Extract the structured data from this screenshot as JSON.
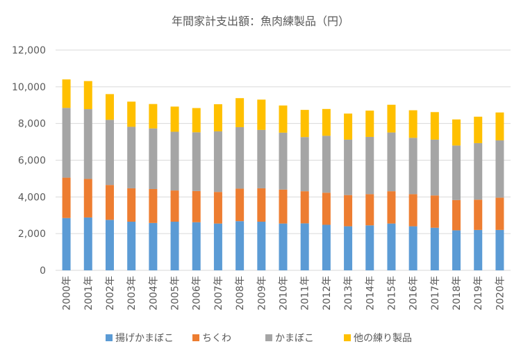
{
  "chart_data": {
    "type": "bar",
    "stacked": true,
    "title": "年間家計支出額：魚肉練製品（円）",
    "xlabel": "",
    "ylabel": "",
    "ylim": [
      0,
      12000
    ],
    "yticks": [
      "0",
      "2,000",
      "4,000",
      "6,000",
      "8,000",
      "10,000",
      "12,000"
    ],
    "grid": true,
    "legend_position": "bottom",
    "categories": [
      "2000年",
      "2001年",
      "2002年",
      "2003年",
      "2004年",
      "2005年",
      "2006年",
      "2007年",
      "2008年",
      "2009年",
      "2010年",
      "2011年",
      "2012年",
      "2013年",
      "2014年",
      "2015年",
      "2016年",
      "2017年",
      "2018年",
      "2019年",
      "2020年"
    ],
    "series": [
      {
        "name": "揚げかまぼこ",
        "color": "#5b9bd5",
        "values": [
          2850,
          2880,
          2750,
          2650,
          2580,
          2650,
          2620,
          2550,
          2680,
          2650,
          2550,
          2560,
          2480,
          2400,
          2450,
          2550,
          2400,
          2320,
          2180,
          2200,
          2200
        ]
      },
      {
        "name": "ちくわ",
        "color": "#ed7d31",
        "values": [
          2200,
          2100,
          1900,
          1820,
          1850,
          1700,
          1700,
          1720,
          1770,
          1820,
          1850,
          1750,
          1750,
          1700,
          1700,
          1760,
          1750,
          1760,
          1650,
          1650,
          1760
        ]
      },
      {
        "name": "かまぼこ",
        "color": "#a5a5a5",
        "values": [
          3800,
          3800,
          3550,
          3350,
          3300,
          3200,
          3200,
          3300,
          3350,
          3180,
          3100,
          2950,
          3100,
          3020,
          3120,
          3200,
          3070,
          3040,
          2970,
          3080,
          3120
        ]
      },
      {
        "name": "他の練り製品",
        "color": "#ffc000",
        "values": [
          1550,
          1530,
          1400,
          1370,
          1330,
          1370,
          1320,
          1480,
          1580,
          1650,
          1480,
          1480,
          1460,
          1420,
          1430,
          1510,
          1500,
          1500,
          1420,
          1440,
          1520
        ]
      }
    ]
  }
}
